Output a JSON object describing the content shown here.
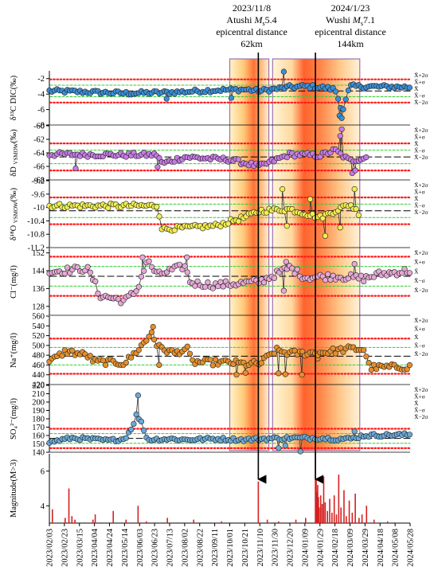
{
  "chart_data": {
    "type": "line",
    "x_start": "2023-02-03",
    "x_end": "2024-05-28",
    "x_ticks": [
      "2023/02/03",
      "2023/02/23",
      "2023/03/15",
      "2023/04/04",
      "2023/04/24",
      "2023/05/14",
      "2023/06/03",
      "2023/06/23",
      "2023/07/13",
      "2023/08/02",
      "2023/08/22",
      "2023/09/11",
      "2023/10/01",
      "2023/10/21",
      "2023/11/10",
      "2023/11/30",
      "2023/12/20",
      "2024/01/09",
      "2024/01/29",
      "2024/02/18",
      "2024/03/09",
      "2024/03/29",
      "2024/04/18",
      "2024/05/08",
      "2024/05/28"
    ],
    "highlight_windows": [
      {
        "from": "2023-10-01",
        "to": "2023-11-22"
      },
      {
        "from": "2023-11-27",
        "to": "2024-03-22"
      }
    ],
    "events": [
      {
        "date": "2023-11-08",
        "lines": [
          "2023/11/8",
          "Atushi Ms5.4",
          "epicentral distance",
          "62km"
        ]
      },
      {
        "date": "2024-01-23",
        "lines": [
          "2024/1/23",
          "Wushi Ms7.1",
          "epicentral distance",
          "144km"
        ]
      }
    ],
    "band_labels": [
      "X̄+2σ",
      "X̄+σ",
      "X̄",
      "X̄−σ",
      "X̄−2σ"
    ],
    "panels": [
      {
        "id": "dic",
        "ylabel": "δ¹³C DIC(‰)",
        "ylim": [
          -8,
          -1
        ],
        "yticks": [
          -8,
          -6,
          -4,
          -2
        ],
        "color": "#3a8fd8",
        "mean": -3.6,
        "sigma": 0.75,
        "nodes": [
          [
            "2023-02-03",
            -3.6
          ],
          [
            "2023-03-15",
            -3.7
          ],
          [
            "2023-05-14",
            -3.9
          ],
          [
            "2023-07-13",
            -3.8
          ],
          [
            "2023-09-11",
            -3.5
          ],
          [
            "2023-10-21",
            -3.4
          ],
          [
            "2023-11-10",
            -3.6
          ],
          [
            "2023-12-20",
            -3.1
          ],
          [
            "2024-01-09",
            -3.0
          ],
          [
            "2024-01-29",
            -3.1
          ],
          [
            "2024-02-18",
            -3.4
          ],
          [
            "2024-02-28",
            -6.2
          ],
          [
            "2024-03-09",
            -3.0
          ],
          [
            "2024-05-28",
            -3.1
          ]
        ],
        "spikes": [
          [
            "2023-07-09",
            -4.6
          ],
          [
            "2023-10-03",
            -4.5
          ],
          [
            "2023-12-12",
            -0.8
          ],
          [
            "2024-02-24",
            -6.8
          ],
          [
            "2024-02-27",
            -7.1
          ]
        ]
      },
      {
        "id": "dD",
        "ylabel": "δD VSMOW(‰)",
        "ylim": [
          -68,
          -60
        ],
        "yticks": [
          -68,
          -66,
          -64,
          -62,
          -60
        ],
        "color": "#c77be4",
        "mean": -64.6,
        "sigma": 1.0,
        "nodes": [
          [
            "2023-02-03",
            -64.2
          ],
          [
            "2023-05-14",
            -64.3
          ],
          [
            "2023-06-27",
            -64.3
          ],
          [
            "2023-07-03",
            -65.6
          ],
          [
            "2023-08-02",
            -64.6
          ],
          [
            "2023-09-11",
            -64.9
          ],
          [
            "2023-10-01",
            -65.0
          ],
          [
            "2023-11-10",
            -66.0
          ],
          [
            "2023-12-20",
            -64.2
          ],
          [
            "2024-01-29",
            -64.4
          ],
          [
            "2024-02-18",
            -63.6
          ],
          [
            "2024-03-09",
            -65.2
          ],
          [
            "2024-04-01",
            -64.6
          ]
        ],
        "spikes": [
          [
            "2023-03-10",
            -66.3
          ],
          [
            "2023-06-27",
            -66.1
          ],
          [
            "2024-02-27",
            -60.5
          ],
          [
            "2024-02-25",
            -61.5
          ],
          [
            "2024-03-12",
            -67.0
          ],
          [
            "2024-03-16",
            -66.6
          ]
        ]
      },
      {
        "id": "d18O",
        "ylabel": "δ¹⁸O VSMOW(‰)",
        "ylim": [
          -11.2,
          -9.2
        ],
        "yticks": [
          -11.2,
          -10.8,
          -10.4,
          -10.0,
          -9.6,
          -9.2
        ],
        "color": "#f2ee50",
        "mean": -10.1,
        "sigma": 0.2,
        "nodes": [
          [
            "2023-02-03",
            -9.95
          ],
          [
            "2023-06-27",
            -9.95
          ],
          [
            "2023-07-03",
            -10.65
          ],
          [
            "2023-09-11",
            -10.55
          ],
          [
            "2023-10-21",
            -10.3
          ],
          [
            "2023-11-10",
            -10.1
          ],
          [
            "2023-12-20",
            -10.05
          ],
          [
            "2024-01-29",
            -10.3
          ],
          [
            "2024-03-09",
            -9.9
          ],
          [
            "2024-03-22",
            -10.2
          ]
        ],
        "spikes": [
          [
            "2023-12-10",
            -9.45
          ],
          [
            "2023-12-16",
            -10.55
          ],
          [
            "2024-01-16",
            -9.75
          ],
          [
            "2024-02-25",
            -10.6
          ],
          [
            "2024-03-15",
            -9.45
          ],
          [
            "2024-02-05",
            -10.85
          ]
        ]
      },
      {
        "id": "cl",
        "ylabel": "Cl⁻(mg/l)",
        "ylim": [
          124,
          154
        ],
        "yticks": [
          128,
          136,
          144,
          152
        ],
        "color": "#e7a8d6",
        "mean": 141.5,
        "sigma": 4.4,
        "nodes": [
          [
            "2023-02-03",
            143.5
          ],
          [
            "2023-03-25",
            145.0
          ],
          [
            "2023-04-04",
            139.0
          ],
          [
            "2023-04-10",
            133.0
          ],
          [
            "2023-05-14",
            130.5
          ],
          [
            "2023-05-30",
            135.0
          ],
          [
            "2023-06-13",
            148.5
          ],
          [
            "2023-06-27",
            142.0
          ],
          [
            "2023-07-13",
            144.0
          ],
          [
            "2023-08-02",
            146.0
          ],
          [
            "2023-08-10",
            138.5
          ],
          [
            "2023-09-11",
            137.5
          ],
          [
            "2023-11-10",
            139.0
          ],
          [
            "2023-12-20",
            145.5
          ],
          [
            "2024-01-09",
            141.0
          ],
          [
            "2024-02-18",
            141.5
          ],
          [
            "2024-03-09",
            141.0
          ],
          [
            "2024-03-28",
            140.5
          ],
          [
            "2024-04-18",
            142.5
          ],
          [
            "2024-05-28",
            144.0
          ]
        ],
        "spikes": [
          [
            "2023-06-07",
            150.0
          ],
          [
            "2023-08-05",
            150.0
          ],
          [
            "2023-12-12",
            135.0
          ],
          [
            "2023-12-15",
            148.0
          ],
          [
            "2024-03-15",
            147.0
          ]
        ]
      },
      {
        "id": "na",
        "ylabel": "Na⁺(mg/l)",
        "ylim": [
          420,
          560
        ],
        "yticks": [
          420,
          440,
          460,
          480,
          500,
          520,
          540,
          560
        ],
        "color": "#e48f2c",
        "mean": 478.0,
        "sigma": 18.0,
        "nodes": [
          [
            "2023-02-03",
            466.0
          ],
          [
            "2023-02-25",
            488.0
          ],
          [
            "2023-03-25",
            480.0
          ],
          [
            "2023-04-04",
            467.0
          ],
          [
            "2023-05-14",
            464.0
          ],
          [
            "2023-05-25",
            480.0
          ],
          [
            "2023-06-13",
            512.0
          ],
          [
            "2023-06-19",
            528.0
          ],
          [
            "2023-06-27",
            497.0
          ],
          [
            "2023-07-20",
            484.0
          ],
          [
            "2023-08-05",
            494.0
          ],
          [
            "2023-08-12",
            466.0
          ],
          [
            "2023-10-01",
            465.0
          ],
          [
            "2023-10-21",
            462.0
          ],
          [
            "2023-11-10",
            462.0
          ],
          [
            "2023-12-01",
            490.0
          ],
          [
            "2023-12-20",
            484.0
          ],
          [
            "2024-01-29",
            485.0
          ],
          [
            "2024-03-09",
            493.0
          ],
          [
            "2024-03-28",
            492.0
          ],
          [
            "2024-04-04",
            455.0
          ],
          [
            "2024-05-28",
            456.0
          ]
        ],
        "spikes": [
          [
            "2023-06-21",
            538.0
          ],
          [
            "2023-06-29",
            460.0
          ],
          [
            "2023-10-10",
            440.0
          ],
          [
            "2023-10-22",
            444.0
          ],
          [
            "2023-12-05",
            443.0
          ],
          [
            "2023-12-14",
            441.0
          ],
          [
            "2024-01-05",
            440.0
          ],
          [
            "2024-01-26",
            473.0
          ]
        ]
      },
      {
        "id": "so4",
        "ylabel": "SO₄²⁻(mg/l)",
        "ylim": [
          140,
          220
        ],
        "yticks": [
          140,
          150,
          160,
          170,
          180,
          190,
          200,
          210,
          220
        ],
        "color": "#6aa8d8",
        "mean": 156.5,
        "sigma": 5.8,
        "nodes": [
          [
            "2023-02-03",
            152.0
          ],
          [
            "2023-03-05",
            157.0
          ],
          [
            "2023-04-24",
            154.0
          ],
          [
            "2023-05-14",
            156.0
          ],
          [
            "2023-05-24",
            170.0
          ],
          [
            "2023-05-30",
            185.0
          ],
          [
            "2023-06-07",
            173.0
          ],
          [
            "2023-06-13",
            155.0
          ],
          [
            "2023-07-13",
            156.0
          ],
          [
            "2023-08-02",
            155.0
          ],
          [
            "2023-09-11",
            156.0
          ],
          [
            "2023-10-21",
            155.0
          ],
          [
            "2023-11-10",
            156.0
          ],
          [
            "2023-12-20",
            157.0
          ],
          [
            "2024-01-29",
            157.0
          ],
          [
            "2024-02-18",
            156.0
          ],
          [
            "2024-03-09",
            156.0
          ],
          [
            "2024-03-28",
            160.0
          ],
          [
            "2024-05-28",
            161.0
          ]
        ],
        "spikes": [
          [
            "2023-06-01",
            208.0
          ],
          [
            "2023-12-05",
            145.0
          ],
          [
            "2023-12-14",
            148.0
          ],
          [
            "2024-01-03",
            139.0
          ],
          [
            "2024-03-15",
            165.0
          ]
        ]
      }
    ],
    "magnitude": {
      "ylabel": "Magnitude(M>3)",
      "ylim": [
        3,
        7
      ],
      "yticks": [
        4,
        6
      ],
      "bar_color": "#d62020",
      "events": [
        [
          "2023-02-07",
          3.8
        ],
        [
          "2023-02-24",
          3.3
        ],
        [
          "2023-03-01",
          5.0
        ],
        [
          "2023-03-05",
          3.4
        ],
        [
          "2023-03-09",
          3.2
        ],
        [
          "2023-04-02",
          3.2
        ],
        [
          "2023-04-05",
          3.5
        ],
        [
          "2023-04-29",
          3.7
        ],
        [
          "2023-05-16",
          3.2
        ],
        [
          "2023-06-01",
          4.0
        ],
        [
          "2023-06-12",
          3.1
        ],
        [
          "2023-07-10",
          3.3
        ],
        [
          "2023-08-14",
          3.2
        ],
        [
          "2023-09-20",
          3.1
        ],
        [
          "2023-11-08",
          5.4
        ],
        [
          "2023-11-20",
          3.2
        ],
        [
          "2023-12-05",
          3.1
        ],
        [
          "2023-12-28",
          3.2
        ],
        [
          "2024-01-10",
          3.3
        ],
        [
          "2024-01-23",
          7.1
        ],
        [
          "2024-01-24",
          5.5
        ],
        [
          "2024-01-25",
          4.8
        ],
        [
          "2024-01-26",
          5.2
        ],
        [
          "2024-01-27",
          4.5
        ],
        [
          "2024-01-28",
          3.9
        ],
        [
          "2024-01-30",
          4.6
        ],
        [
          "2024-02-01",
          4.1
        ],
        [
          "2024-02-03",
          5.7
        ],
        [
          "2024-02-05",
          4.2
        ],
        [
          "2024-02-08",
          3.7
        ],
        [
          "2024-02-11",
          4.4
        ],
        [
          "2024-02-14",
          3.6
        ],
        [
          "2024-02-17",
          4.6
        ],
        [
          "2024-02-20",
          3.5
        ],
        [
          "2024-02-23",
          5.8
        ],
        [
          "2024-02-26",
          3.9
        ],
        [
          "2024-03-01",
          4.9
        ],
        [
          "2024-03-04",
          3.4
        ],
        [
          "2024-03-08",
          4.3
        ],
        [
          "2024-03-12",
          3.6
        ],
        [
          "2024-03-16",
          4.7
        ],
        [
          "2024-03-21",
          3.3
        ],
        [
          "2024-03-25",
          3.5
        ],
        [
          "2024-03-31",
          4.0
        ],
        [
          "2024-04-10",
          3.2
        ],
        [
          "2024-04-28",
          3.1
        ]
      ]
    }
  }
}
